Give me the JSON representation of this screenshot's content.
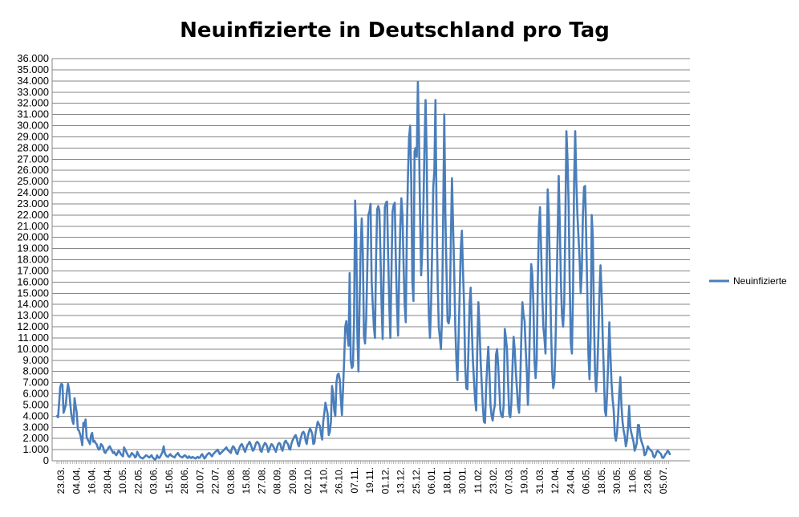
{
  "chart_data": {
    "type": "line",
    "title": "Neuinfizierte in Deutschland pro Tag",
    "xlabel": "",
    "ylabel": "",
    "ylim": [
      0,
      36000
    ],
    "y_ticks": [
      "0",
      "1.000",
      "2.000",
      "3.000",
      "4.000",
      "5.000",
      "6.000",
      "7.000",
      "8.000",
      "9.000",
      "10.000",
      "11.000",
      "12.000",
      "13.000",
      "14.000",
      "15.000",
      "16.000",
      "17.000",
      "18.000",
      "19.000",
      "20.000",
      "21.000",
      "22.000",
      "23.000",
      "24.000",
      "25.000",
      "26.000",
      "27.000",
      "28.000",
      "29.000",
      "30.000",
      "31.000",
      "32.000",
      "33.000",
      "34.000",
      "35.000",
      "36.000"
    ],
    "x_ticks": [
      "23.03.",
      "04.04.",
      "16.04.",
      "28.04.",
      "10.05.",
      "22.05.",
      "03.06.",
      "15.06.",
      "28.06.",
      "10.07.",
      "22.07.",
      "03.08.",
      "15.08.",
      "27.08.",
      "08.09.",
      "20.09.",
      "02.10.",
      "14.10.",
      "26.10.",
      "07.11.",
      "19.11.",
      "01.12.",
      "13.12.",
      "25.12.",
      "06.01.",
      "18.01.",
      "30.01.",
      "11.02.",
      "23.02.",
      "07.03.",
      "19.03.",
      "31.03.",
      "12.04.",
      "24.04.",
      "06.05.",
      "18.05.",
      "30.05.",
      "11.06.",
      "23.06.",
      "05.07."
    ],
    "grid": true,
    "legend_position": "right",
    "series": [
      {
        "name": "Neuinfizierte",
        "color": "#4a7ebb",
        "values": [
          4000,
          3900,
          5200,
          6600,
          6900,
          6800,
          4300,
          4600,
          5000,
          6100,
          6900,
          6400,
          5200,
          4200,
          3600,
          3300,
          5600,
          4900,
          4300,
          2800,
          2700,
          2400,
          2000,
          1400,
          3400,
          3100,
          3700,
          2100,
          1900,
          1700,
          1500,
          2300,
          2500,
          1700,
          1800,
          1600,
          1500,
          1200,
          1000,
          1100,
          1500,
          1400,
          1200,
          800,
          700,
          900,
          1000,
          1200,
          1300,
          1100,
          900,
          700,
          800,
          600,
          500,
          700,
          900,
          800,
          600,
          500,
          400,
          1200,
          1000,
          800,
          600,
          400,
          350,
          500,
          700,
          600,
          500,
          300,
          400,
          800,
          600,
          400,
          300,
          250,
          200,
          300,
          400,
          500,
          450,
          350,
          300,
          400,
          500,
          300,
          200,
          100,
          200,
          500,
          300,
          250,
          400,
          600,
          800,
          1300,
          700,
          500,
          400,
          350,
          500,
          600,
          450,
          400,
          350,
          300,
          500,
          600,
          700,
          500,
          400,
          350,
          300,
          400,
          500,
          450,
          300,
          250,
          400,
          300,
          250,
          350,
          300,
          250,
          200,
          300,
          350,
          250,
          300,
          500,
          600,
          400,
          200,
          300,
          500,
          600,
          700,
          650,
          500,
          400,
          600,
          700,
          800,
          900,
          1000,
          800,
          600,
          700,
          800,
          900,
          1000,
          1100,
          1200,
          1000,
          900,
          800,
          700,
          1100,
          1300,
          1200,
          1000,
          700,
          600,
          900,
          1200,
          1400,
          1500,
          1300,
          1000,
          800,
          1100,
          1400,
          1500,
          1700,
          1500,
          1200,
          900,
          1000,
          1300,
          1600,
          1700,
          1600,
          1400,
          900,
          800,
          1200,
          1400,
          1600,
          1500,
          1300,
          800,
          1000,
          1300,
          1500,
          1400,
          1200,
          1000,
          800,
          1200,
          1500,
          1600,
          1500,
          1100,
          900,
          1300,
          1700,
          1800,
          1600,
          1500,
          1100,
          1000,
          1500,
          1800,
          2000,
          2200,
          2300,
          2000,
          1500,
          1300,
          1800,
          2200,
          2500,
          2600,
          2400,
          1800,
          1500,
          2200,
          2600,
          2900,
          2700,
          2400,
          1500,
          1600,
          2500,
          3000,
          3500,
          3300,
          3100,
          2400,
          1900,
          3500,
          4300,
          5200,
          4700,
          4200,
          2300,
          2600,
          3500,
          6700,
          6000,
          4500,
          4000,
          7000,
          7700,
          7800,
          7300,
          5500,
          4100,
          6400,
          9000,
          12000,
          12500,
          11300,
          10300,
          16800,
          9000,
          8300,
          8500,
          12500,
          23300,
          20000,
          11300,
          8000,
          14000,
          19000,
          21700,
          18500,
          11200,
          10500,
          12600,
          17000,
          22000,
          22300,
          23000,
          16000,
          14000,
          12000,
          11000,
          18000,
          22500,
          22800,
          22400,
          18500,
          14000,
          10900,
          17000,
          22700,
          23100,
          23200,
          18300,
          14000,
          11000,
          17000,
          22300,
          22900,
          23100,
          17800,
          14000,
          11200,
          16500,
          20900,
          23500,
          22000,
          17600,
          14000,
          12400,
          20400,
          25500,
          28900,
          30000,
          25000,
          16000,
          14300,
          27700,
          28000,
          27200,
          33900,
          29000,
          22000,
          16600,
          19000,
          22500,
          28000,
          32300,
          27500,
          18000,
          13000,
          11000,
          14000,
          19000,
          24500,
          26000,
          32300,
          22000,
          16000,
          12000,
          11000,
          10000,
          13000,
          22000,
          31000,
          22000,
          17000,
          12500,
          12300,
          13000,
          20000,
          25300,
          21000,
          17000,
          12000,
          9000,
          7200,
          11000,
          15000,
          19000,
          20600,
          17000,
          14000,
          8500,
          6500,
          6400,
          10000,
          14000,
          15500,
          12000,
          9000,
          7200,
          5500,
          4500,
          10000,
          14200,
          12000,
          9000,
          7000,
          5000,
          3500,
          3400,
          6500,
          8500,
          10200,
          8000,
          5000,
          4000,
          3600,
          4500,
          5000,
          9500,
          10000,
          8500,
          6500,
          4500,
          4000,
          3900,
          5000,
          11800,
          11000,
          10000,
          7000,
          4200,
          3900,
          5200,
          8400,
          11100,
          10000,
          8000,
          6500,
          4900,
          4300,
          6900,
          11000,
          14200,
          13100,
          12500,
          10000,
          8000,
          5000,
          8000,
          13000,
          17600,
          16700,
          14000,
          8900,
          7400,
          9100,
          16000,
          21000,
          22700,
          19000,
          15000,
          12000,
          11000,
          9600,
          17000,
          24300,
          22000,
          17000,
          12000,
          8000,
          6500,
          7000,
          10000,
          15000,
          20000,
          25500,
          21000,
          16000,
          13000,
          12000,
          14000,
          21000,
          29500,
          27000,
          23000,
          16000,
          10500,
          9600,
          15000,
          25000,
          29500,
          25000,
          22000,
          20000,
          18000,
          15000,
          17000,
          22000,
          24500,
          24600,
          20000,
          15000,
          9500,
          7300,
          11000,
          22000,
          20000,
          13000,
          8000,
          6200,
          8000,
          11000,
          15000,
          17500,
          15000,
          11000,
          8000,
          4500,
          4000,
          6000,
          9000,
          12400,
          9500,
          7000,
          5500,
          4500,
          2300,
          1800,
          2500,
          4000,
          6000,
          7500,
          5000,
          3500,
          2700,
          2200,
          1300,
          1800,
          3000,
          4900,
          3000,
          2500,
          2100,
          1700,
          900,
          1200,
          1600,
          3200,
          3200,
          2200,
          1800,
          1500,
          1200,
          500,
          600,
          900,
          1300,
          1100,
          1000,
          900,
          800,
          400,
          300,
          500,
          800,
          900,
          800,
          700,
          600,
          300,
          250,
          400,
          600,
          700,
          900,
          800,
          600
        ]
      }
    ]
  }
}
